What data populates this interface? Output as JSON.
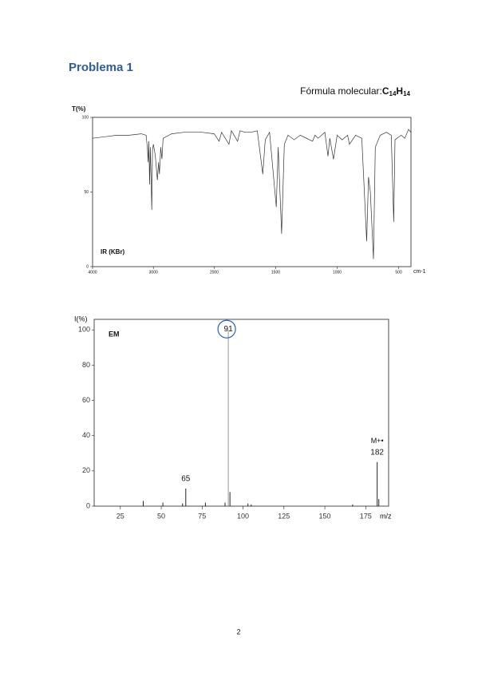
{
  "header": {
    "title": "Problema 1"
  },
  "formula": {
    "label": "Fórmula molecular:",
    "parts": [
      "C",
      "14",
      "H",
      "14"
    ]
  },
  "ir_spectrum": {
    "type": "line",
    "ylabel": "T(%)",
    "xlabel": "cm-1",
    "annotation": "IR (KBr)",
    "color": "#333",
    "xlim": [
      4000,
      400
    ],
    "x_scale_break": 2000,
    "xticks": [
      4000,
      3000,
      2000,
      1500,
      1000,
      500
    ],
    "ylim": [
      0,
      100
    ],
    "yticks": [
      0,
      50,
      100
    ],
    "x": [
      4000,
      3800,
      3600,
      3400,
      3200,
      3120,
      3100,
      3085,
      3075,
      3062,
      3050,
      3027,
      3015,
      3000,
      2970,
      2935,
      2915,
      2900,
      2880,
      2860,
      2840,
      2700,
      2500,
      2200,
      2000,
      1960,
      1940,
      1880,
      1860,
      1810,
      1790,
      1750,
      1700,
      1650,
      1605,
      1585,
      1550,
      1495,
      1480,
      1452,
      1430,
      1400,
      1350,
      1300,
      1200,
      1180,
      1155,
      1100,
      1075,
      1060,
      1030,
      1000,
      960,
      915,
      900,
      850,
      800,
      760,
      745,
      730,
      705,
      690,
      650,
      600,
      560,
      540,
      530,
      480,
      450,
      420,
      400
    ],
    "y": [
      86,
      87,
      88,
      88,
      89,
      88,
      80,
      70,
      84,
      55,
      80,
      38,
      78,
      82,
      75,
      58,
      70,
      62,
      80,
      72,
      86,
      89,
      90,
      90,
      89,
      84,
      90,
      82,
      91,
      84,
      91,
      90,
      90,
      91,
      62,
      85,
      90,
      40,
      80,
      22,
      82,
      88,
      85,
      88,
      84,
      88,
      86,
      90,
      74,
      86,
      72,
      88,
      85,
      88,
      82,
      88,
      86,
      17,
      60,
      50,
      5,
      80,
      88,
      90,
      88,
      30,
      85,
      88,
      86,
      92,
      90
    ]
  },
  "mass_spectrum": {
    "type": "bar",
    "ylabel": "I(%)",
    "xlabel": "m/z",
    "annotation": "EM",
    "color": "#222",
    "xlim": [
      9,
      189
    ],
    "xticks": [
      25,
      50,
      75,
      100,
      125,
      150,
      175
    ],
    "ylim": [
      0,
      106
    ],
    "yticks": [
      0,
      20,
      40,
      60,
      80,
      100
    ],
    "x": [
      39,
      51,
      63,
      65,
      77,
      89,
      91,
      92,
      103,
      105,
      167,
      182,
      183
    ],
    "values": [
      3,
      2,
      1.5,
      10,
      2,
      2,
      100,
      8,
      1.5,
      1,
      1,
      25,
      4
    ],
    "labeled_peaks": [
      65,
      91,
      182
    ],
    "molecular_ion_label": "M+•"
  },
  "page_number": "2"
}
